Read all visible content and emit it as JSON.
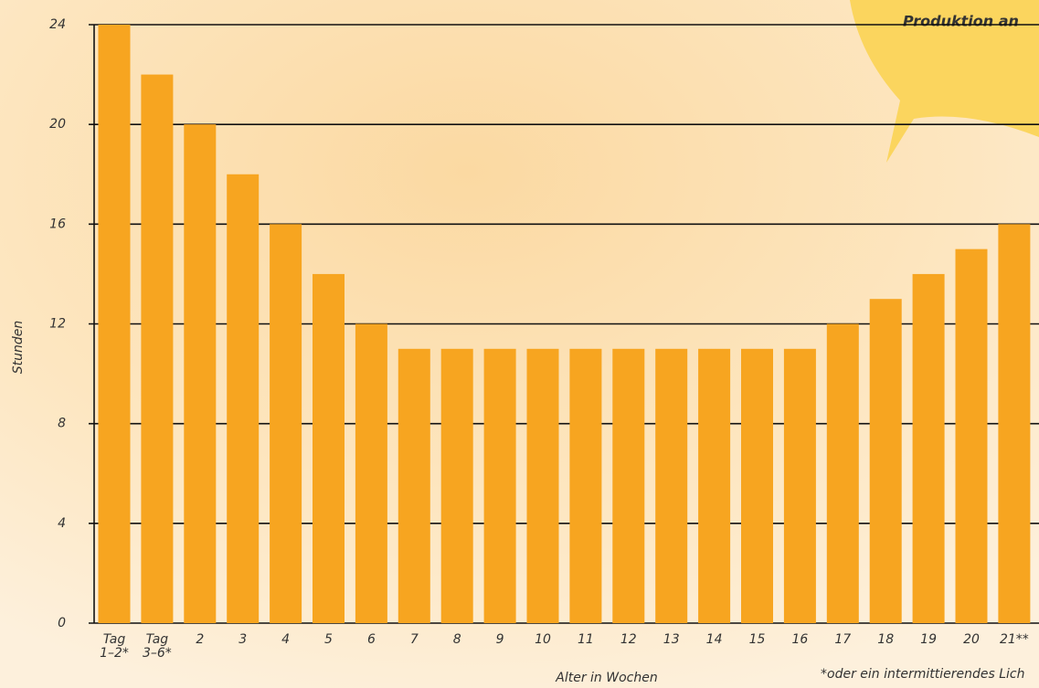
{
  "chart_data": {
    "type": "bar",
    "categories": [
      "Tag\n1–2*",
      "Tag\n3–6*",
      "2",
      "3",
      "4",
      "5",
      "6",
      "7",
      "8",
      "9",
      "10",
      "11",
      "12",
      "13",
      "14",
      "15",
      "16",
      "17",
      "18",
      "19",
      "20",
      "21**"
    ],
    "values": [
      24,
      22,
      20,
      18,
      16,
      14,
      12,
      11,
      11,
      11,
      11,
      11,
      11,
      11,
      11,
      11,
      11,
      12,
      13,
      14,
      15,
      16
    ],
    "color": "#f7a520",
    "ylim": [
      0,
      24
    ],
    "yticks": [
      0,
      4,
      8,
      12,
      16,
      20,
      24
    ],
    "grid": true,
    "y_label": "Stunden",
    "x_label": "Alter in Wochen",
    "annotation": "Produktion an",
    "footnote": "*oder ein intermittierendes Lich"
  }
}
